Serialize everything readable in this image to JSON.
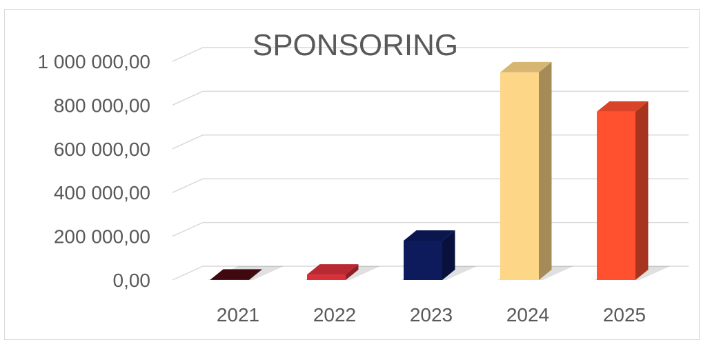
{
  "chart_data": {
    "type": "bar",
    "title": "SPONSORING",
    "xlabel": "",
    "ylabel": "",
    "categories": [
      "2021",
      "2022",
      "2023",
      "2024",
      "2025"
    ],
    "values": [
      2000,
      25000,
      180000,
      950000,
      770000
    ],
    "colors": [
      "#4a0a12",
      "#d9303a",
      "#0d1a5c",
      "#fdd688",
      "#ff5030"
    ],
    "ylim": [
      0,
      1000000
    ],
    "yticks": [
      "0,00",
      "200 000,00",
      "400 000,00",
      "600 000,00",
      "800 000,00",
      "1 000 000,00"
    ],
    "grid": true,
    "legend": "none",
    "style": "3d-column"
  }
}
